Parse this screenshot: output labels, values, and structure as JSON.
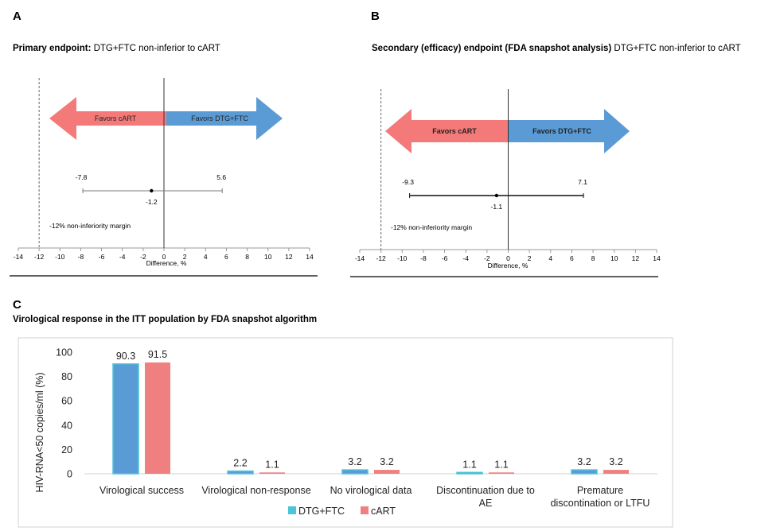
{
  "panel_a": {
    "letter": "A",
    "title_bold": "Primary endpoint:",
    "title_rest": " DTG+FTC non-inferior to cART",
    "arrow_left_label": "Favors cART",
    "arrow_right_label": "Favors DTG+FTC",
    "margin_label": "-12% non-inferiority margin",
    "xlabel": "Difference, %"
  },
  "panel_b": {
    "letter": "B",
    "title_bold": "Secondary (efficacy) endpoint (FDA snapshot analysis)",
    "title_rest": " DTG+FTC non-inferior to cART",
    "arrow_left_label": "Favors cART",
    "arrow_right_label": "Favors DTG+FTC",
    "margin_label": "-12% non-inferiority margin",
    "xlabel": "Difference, %"
  },
  "panel_c": {
    "letter": "C",
    "title": "Virological response in the ITT population by FDA snapshot algorithm"
  },
  "colors": {
    "dtg_ftc": "#5b9bd5",
    "dtg_ftc_border": "#4bc4d8",
    "cart": "#f08080",
    "arrow_left": "#f47a7a",
    "arrow_right": "#5b9bd5"
  },
  "chart_data": [
    {
      "type": "forest",
      "panel": "A",
      "xlim": [
        -14,
        14
      ],
      "xticks": [
        "-14",
        "-12",
        "-10",
        "-8",
        "-6",
        "-4",
        "-2",
        "0",
        "2",
        "4",
        "6",
        "8",
        "10",
        "12",
        "14"
      ],
      "xlabel": "Difference, %",
      "margin": -12,
      "estimate": -1.2,
      "ci_low": -7.8,
      "ci_high": 5.6,
      "labels": {
        "estimate": "-1.2",
        "ci_low": "-7.8",
        "ci_high": "5.6"
      }
    },
    {
      "type": "forest",
      "panel": "B",
      "xlim": [
        -14,
        14
      ],
      "xticks": [
        "-14",
        "-12",
        "-10",
        "-8",
        "-6",
        "-4",
        "-2",
        "0",
        "2",
        "4",
        "6",
        "8",
        "10",
        "12",
        "14"
      ],
      "xlabel": "Difference, %",
      "margin": -12,
      "estimate": -1.1,
      "ci_low": -9.3,
      "ci_high": 7.1,
      "labels": {
        "estimate": "-1.1",
        "ci_low": "-9.3",
        "ci_high": "7.1"
      }
    },
    {
      "type": "bar",
      "panel": "C",
      "categories": [
        [
          "Virological success"
        ],
        [
          "Virological non-response"
        ],
        [
          "No virological data"
        ],
        [
          "Discontinuation due to",
          "AE"
        ],
        [
          "Premature",
          "discontination or LTFU"
        ]
      ],
      "series": [
        {
          "name": "DTG+FTC",
          "values": [
            90.3,
            2.2,
            3.2,
            1.1,
            3.2
          ]
        },
        {
          "name": "cART",
          "values": [
            91.5,
            1.1,
            3.2,
            1.1,
            3.2
          ]
        }
      ],
      "value_labels": [
        [
          "90.3",
          "2.2",
          "3.2",
          "1.1",
          "3.2"
        ],
        [
          "91.5",
          "1.1",
          "3.2",
          "1.1",
          "3.2"
        ]
      ],
      "ylabel": "HIV-RNA<50 copies/ml (%)",
      "ylim": [
        0,
        100
      ],
      "yticks": [
        "0",
        "20",
        "40",
        "60",
        "80",
        "100"
      ],
      "legend": "bottom-center"
    }
  ]
}
